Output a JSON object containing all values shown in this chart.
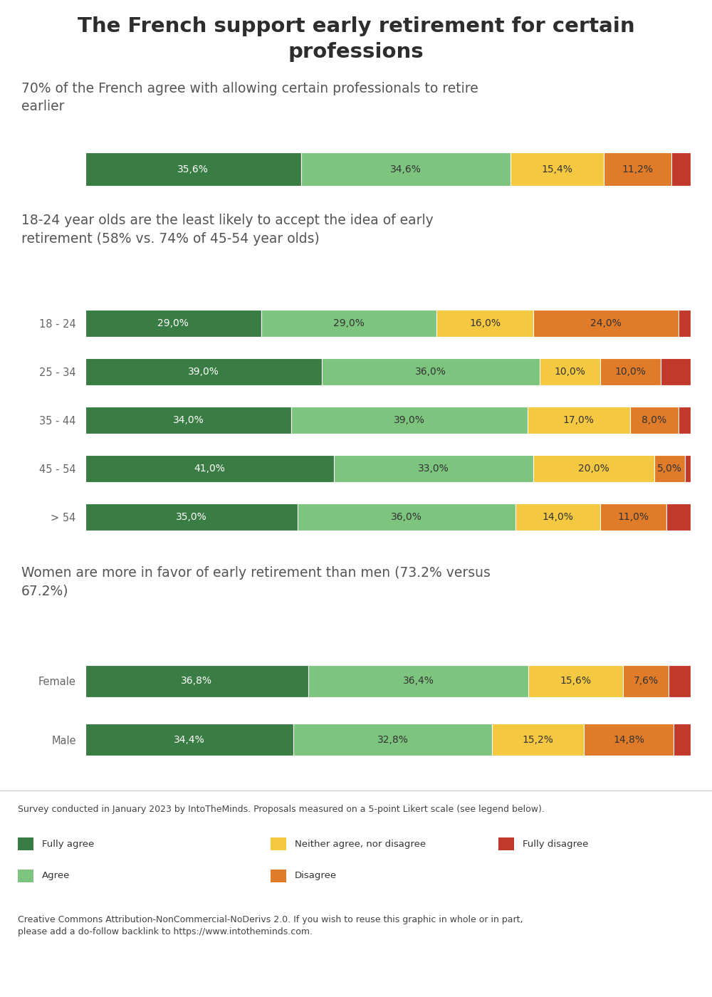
{
  "title": "The French support early retirement for certain\nprofessions",
  "bg_color": "#ffffff",
  "footer_bg": "#efefef",
  "colors": {
    "fully_agree": "#3a7d44",
    "agree": "#7dc47e",
    "neither": "#f5c842",
    "disagree": "#e07b2a",
    "fully_disagree": "#c0392b"
  },
  "section1_subtitle": "70% of the French agree with allowing certain professionals to retire\nearlier",
  "section1_data": {
    "labels": [
      ""
    ],
    "fully_agree": [
      35.6
    ],
    "agree": [
      34.6
    ],
    "neither": [
      15.4
    ],
    "disagree": [
      11.2
    ],
    "fully_disagree": [
      3.2
    ]
  },
  "section2_subtitle": "18-24 year olds are the least likely to accept the idea of early\nretirement (58% vs. 74% of 45-54 year olds)",
  "section2_data": {
    "labels": [
      "18 - 24",
      "25 - 34",
      "35 - 44",
      "45 - 54",
      "> 54"
    ],
    "fully_agree": [
      29.0,
      39.0,
      34.0,
      41.0,
      35.0
    ],
    "agree": [
      29.0,
      36.0,
      39.0,
      33.0,
      36.0
    ],
    "neither": [
      16.0,
      10.0,
      17.0,
      20.0,
      14.0
    ],
    "disagree": [
      24.0,
      10.0,
      8.0,
      5.0,
      11.0
    ],
    "fully_disagree": [
      2.0,
      5.0,
      2.0,
      1.0,
      4.0
    ]
  },
  "section3_subtitle": "Women are more in favor of early retirement than men (73.2% versus\n67.2%)",
  "section3_data": {
    "labels": [
      "Female",
      "Male"
    ],
    "fully_agree": [
      36.8,
      34.4
    ],
    "agree": [
      36.4,
      32.8
    ],
    "neither": [
      15.6,
      15.2
    ],
    "disagree": [
      7.6,
      14.8
    ],
    "fully_disagree": [
      3.6,
      2.8
    ]
  },
  "legend_items": [
    {
      "label": "Fully agree",
      "color": "#3a7d44"
    },
    {
      "label": "Neither agree, nor disagree",
      "color": "#f5c842"
    },
    {
      "label": "Fully disagree",
      "color": "#c0392b"
    },
    {
      "label": "Agree",
      "color": "#7dc47e"
    },
    {
      "label": "Disagree",
      "color": "#e07b2a"
    }
  ],
  "footnote1": "Survey conducted in January 2023 by IntoTheMinds. Proposals measured on a 5-point Likert scale (see legend below).",
  "footnote2": "Creative Commons Attribution-NonCommercial-NoDerivs 2.0. If you wish to reuse this graphic in whole or in part,\nplease add a do-follow backlink to https://www.intotheminds.com."
}
